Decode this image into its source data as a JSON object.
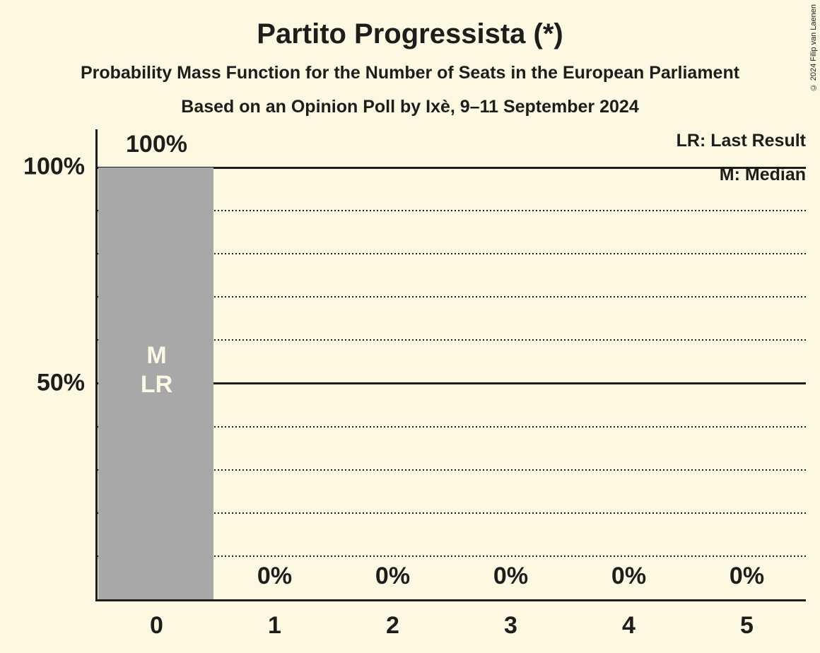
{
  "chart_data": {
    "type": "bar",
    "title": "Partito Progressista (*)",
    "subtitle": "Probability Mass Function for the Number of Seats in the European Parliament",
    "poll_line": "Based on an Opinion Poll by Ixè, 9–11 September 2024",
    "categories": [
      "0",
      "1",
      "2",
      "3",
      "4",
      "5"
    ],
    "values": [
      100,
      0,
      0,
      0,
      0,
      0
    ],
    "value_labels": [
      "100%",
      "0%",
      "0%",
      "0%",
      "0%",
      "0%"
    ],
    "xlabel": "",
    "ylabel": "",
    "ylim": [
      0,
      100
    ],
    "ytick_values": [
      100,
      50
    ],
    "ytick_labels": [
      "100%",
      "50%"
    ],
    "solid_gridlines": [
      100,
      50
    ],
    "dotted_gridlines": [
      90,
      80,
      70,
      60,
      40,
      30,
      20,
      10
    ],
    "grid": true,
    "legend_position": "top-right",
    "legend": [
      {
        "label": "LR: Last Result"
      },
      {
        "label": "M: Median"
      }
    ],
    "bar_annotations": [
      {
        "category_index": 0,
        "lines": [
          "M",
          "LR"
        ]
      }
    ],
    "copyright": "© 2024 Filip van Laenen",
    "colors": {
      "background": "#FDF8E1",
      "bar": "#A8A8A8",
      "text": "#1D1D1B",
      "annotation_text": "#FDF8E1"
    }
  }
}
